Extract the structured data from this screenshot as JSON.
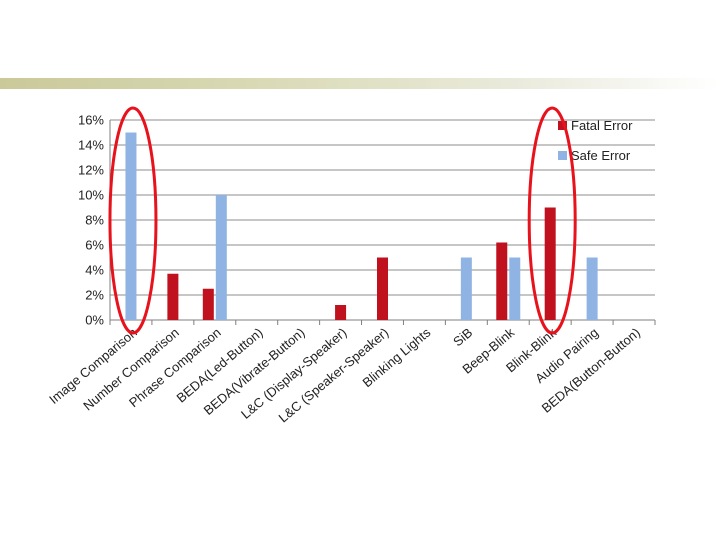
{
  "chart_data": {
    "type": "bar",
    "categories": [
      "Image Comparison",
      "Number Comparison",
      "Phrase Comparison",
      "BEDA(Led-Button)",
      "BEDA(Vibrate-Button)",
      "L&C (Display-Speaker)",
      "L&C (Speaker-Speaker)",
      "Blinking Lights",
      "SiB",
      "Beep-Blink",
      "Blink-Blink",
      "Audio Pairing",
      "BEDA(Button-Button)"
    ],
    "series": [
      {
        "name": "Fatal Error",
        "color": "#c0111f",
        "values": [
          0,
          3.7,
          2.5,
          0,
          0,
          1.2,
          5,
          0,
          0,
          6.2,
          9,
          0,
          0
        ]
      },
      {
        "name": "Safe Error",
        "color": "#8fb4e3",
        "values": [
          15,
          0,
          10,
          0,
          0,
          0,
          0,
          0,
          5,
          5,
          0,
          5,
          0
        ]
      }
    ],
    "yticks": [
      "0%",
      "2%",
      "4%",
      "6%",
      "8%",
      "10%",
      "12%",
      "14%",
      "16%"
    ],
    "ylim": [
      0,
      16
    ],
    "grid": true,
    "legend": "top-right",
    "highlights": [
      {
        "categories": [
          "Image Comparison"
        ],
        "shape": "ellipse",
        "color": "#e8121c"
      },
      {
        "categories": [
          "Blink-Blink"
        ],
        "shape": "ellipse",
        "color": "#e8121c"
      }
    ]
  }
}
